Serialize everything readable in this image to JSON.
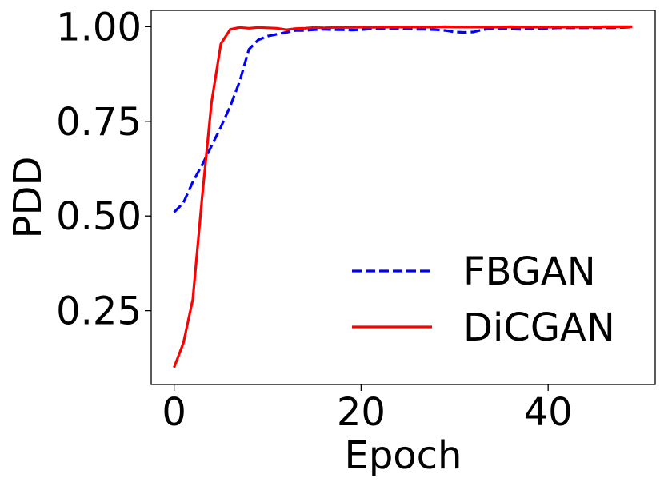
{
  "chart_data": {
    "type": "line",
    "title": "",
    "xlabel": "Epoch",
    "ylabel": "PDD",
    "xlim": [
      -2.45,
      51.45
    ],
    "ylim": [
      0.055,
      1.043
    ],
    "xticks": [
      0,
      20,
      40
    ],
    "xtick_labels": [
      "0",
      "20",
      "40"
    ],
    "yticks": [
      0.25,
      0.5,
      0.75,
      1.0
    ],
    "ytick_labels": [
      "0.25",
      "0.50",
      "0.75",
      "1.00"
    ],
    "grid": false,
    "legend_position": "lower-right",
    "series": [
      {
        "name": "FBGAN",
        "color": "#0000ff",
        "style": "dashed",
        "x": [
          0,
          1,
          2,
          3,
          4,
          5,
          6,
          7,
          8,
          9,
          10,
          11,
          12,
          13,
          14,
          15,
          16,
          17,
          18,
          19,
          20,
          21,
          22,
          23,
          24,
          25,
          26,
          27,
          28,
          29,
          30,
          31,
          32,
          33,
          34,
          35,
          36,
          37,
          38,
          39,
          40,
          41,
          42,
          43,
          44,
          45,
          46,
          47,
          48,
          49
        ],
        "values": [
          0.51,
          0.535,
          0.59,
          0.635,
          0.685,
          0.735,
          0.79,
          0.855,
          0.94,
          0.965,
          0.975,
          0.98,
          0.985,
          0.99,
          0.99,
          0.992,
          0.993,
          0.992,
          0.992,
          0.991,
          0.992,
          0.994,
          0.995,
          0.995,
          0.994,
          0.994,
          0.993,
          0.993,
          0.992,
          0.99,
          0.986,
          0.985,
          0.986,
          0.992,
          0.995,
          0.995,
          0.994,
          0.993,
          0.994,
          0.995,
          0.996,
          0.997,
          0.997,
          0.997,
          0.997,
          0.997,
          0.997,
          0.997,
          0.998,
          0.999
        ]
      },
      {
        "name": "DiCGAN",
        "color": "#ff0000",
        "style": "solid",
        "x": [
          0,
          1,
          2,
          3,
          4,
          5,
          6,
          7,
          8,
          9,
          10,
          11,
          12,
          13,
          14,
          15,
          16,
          17,
          18,
          19,
          20,
          21,
          22,
          23,
          24,
          25,
          26,
          27,
          28,
          29,
          30,
          31,
          32,
          33,
          34,
          35,
          36,
          37,
          38,
          39,
          40,
          41,
          42,
          43,
          44,
          45,
          46,
          47,
          48,
          49
        ],
        "values": [
          0.1,
          0.165,
          0.28,
          0.55,
          0.8,
          0.955,
          0.993,
          0.998,
          0.996,
          0.998,
          0.997,
          0.996,
          0.992,
          0.995,
          0.996,
          0.998,
          0.997,
          0.998,
          0.998,
          0.998,
          0.999,
          0.998,
          0.999,
          0.999,
          0.999,
          0.999,
          0.999,
          0.999,
          0.999,
          1.0,
          0.999,
          0.999,
          0.999,
          0.999,
          0.999,
          0.999,
          1.0,
          0.999,
          0.999,
          0.999,
          0.999,
          0.999,
          0.999,
          0.999,
          0.999,
          0.999,
          1.0,
          1.0,
          1.0,
          1.0
        ]
      }
    ]
  }
}
